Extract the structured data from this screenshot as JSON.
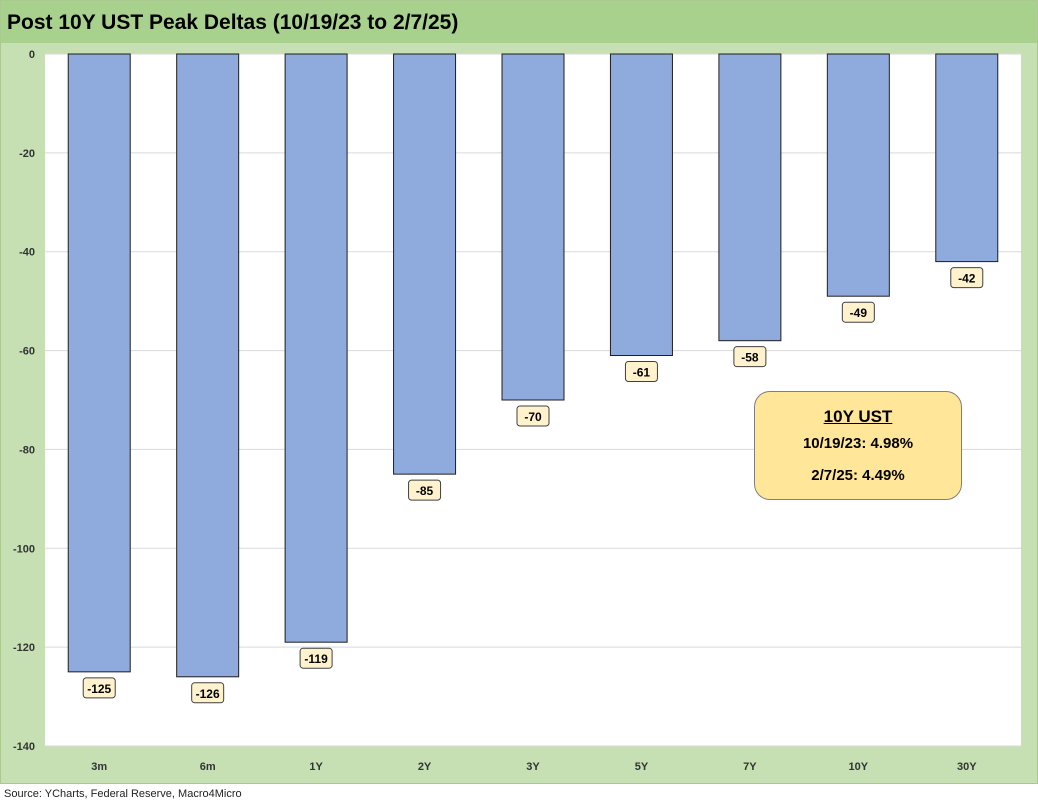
{
  "chart_data": {
    "type": "bar",
    "title": "Post 10Y UST Peak Deltas (10/19/23 to 2/7/25)",
    "categories": [
      "3m",
      "6m",
      "1Y",
      "2Y",
      "3Y",
      "5Y",
      "7Y",
      "10Y",
      "30Y"
    ],
    "values": [
      -125,
      -126,
      -119,
      -85,
      -70,
      -61,
      -58,
      -49,
      -42
    ],
    "ylim": [
      -140,
      0
    ],
    "yticks": [
      0,
      -20,
      -40,
      -60,
      -80,
      -100,
      -120,
      -140
    ],
    "grid": true,
    "colors": {
      "bar": "#8faadc",
      "bar_edge": "#1f1f1f",
      "label_bg": "#fff2cc",
      "plot_bg": "#ffffff",
      "frame_bg": "#c6e0b4",
      "title_bg": "#a9d18e"
    },
    "annotation": {
      "header": "10Y UST",
      "line1": "10/19/23: 4.98%",
      "line2": "2/7/25: 4.49%"
    },
    "source": "Source: YCharts, Federal Reserve, Macro4Micro"
  }
}
